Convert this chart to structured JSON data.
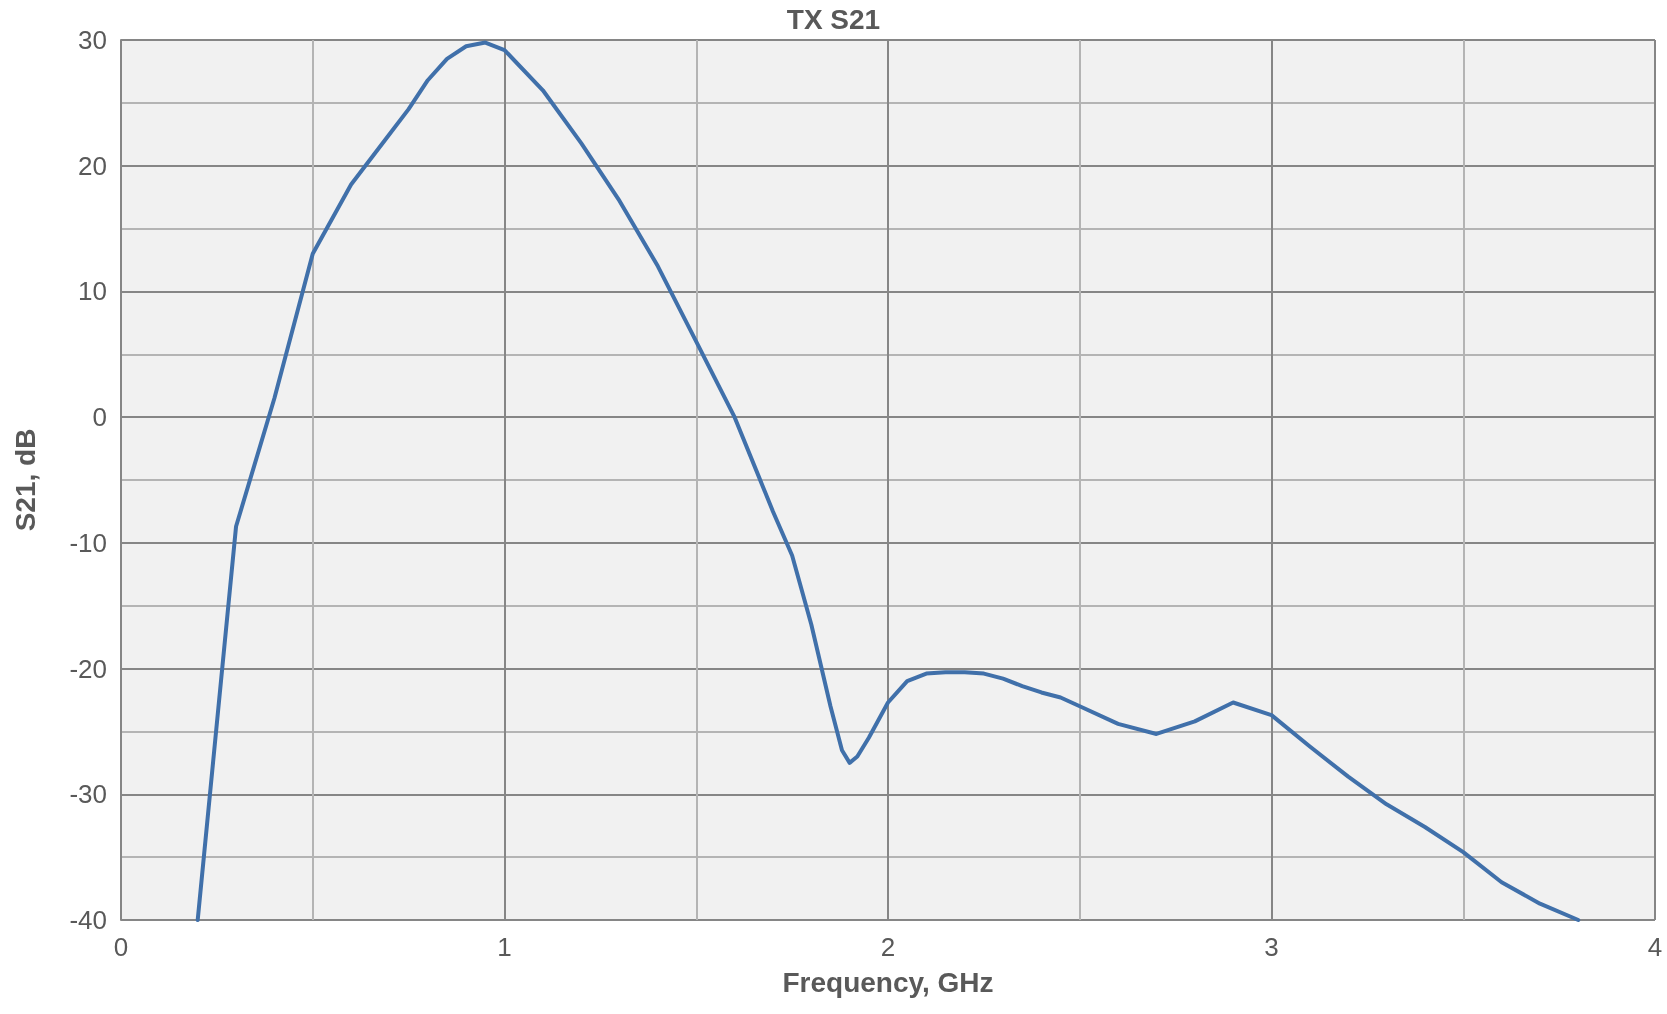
{
  "chart_data": {
    "type": "line",
    "title": "TX S21",
    "xlabel": "Frequency, GHz",
    "ylabel": "S21, dB",
    "x": [
      0.2,
      0.3,
      0.4,
      0.5,
      0.6,
      0.7,
      0.75,
      0.8,
      0.85,
      0.9,
      0.95,
      1.0,
      1.1,
      1.2,
      1.3,
      1.4,
      1.5,
      1.6,
      1.7,
      1.75,
      1.8,
      1.85,
      1.88,
      1.9,
      1.92,
      1.95,
      2.0,
      2.05,
      2.1,
      2.15,
      2.2,
      2.25,
      2.3,
      2.35,
      2.4,
      2.45,
      2.5,
      2.6,
      2.7,
      2.8,
      2.9,
      3.0,
      3.1,
      3.2,
      3.3,
      3.4,
      3.5,
      3.6,
      3.7,
      3.8
    ],
    "series": [
      {
        "color": "#4070aa",
        "values": [
          -40,
          -8.7,
          1.5,
          13,
          18.5,
          22.5,
          24.5,
          26.8,
          28.5,
          29.5,
          29.8,
          29.2,
          26,
          21.8,
          17.2,
          12,
          6,
          0,
          -7.5,
          -11,
          -16.5,
          -23,
          -26.5,
          -27.5,
          -27,
          -25.5,
          -22.7,
          -21,
          -20.4,
          -20.3,
          -20.3,
          -20.4,
          -20.8,
          -21.4,
          -21.9,
          -22.3,
          -23,
          -24.4,
          -25.2,
          -24.2,
          -22.7,
          -23.7,
          -26.2,
          -28.6,
          -30.8,
          -32.6,
          -34.6,
          -37,
          -38.7,
          -40
        ]
      }
    ],
    "xlim": [
      0,
      4
    ],
    "xticks": [
      0,
      {
        "value": 0.5,
        "label": null
      },
      1,
      {
        "value": 1.5,
        "label": null
      },
      2,
      {
        "value": 2.5,
        "label": null
      },
      3,
      {
        "value": 3.5,
        "label": null
      },
      4
    ],
    "ylim": [
      -40,
      30
    ],
    "yticks": [
      -40,
      {
        "value": -35,
        "label": null
      },
      -30,
      {
        "value": -25,
        "label": null
      },
      -20,
      {
        "value": -15,
        "label": null
      },
      -10,
      {
        "value": -5,
        "label": null
      },
      0,
      {
        "value": 5,
        "label": null
      },
      10,
      {
        "value": 15,
        "label": null
      },
      20,
      {
        "value": 25,
        "label": null
      },
      30
    ],
    "grid": true,
    "marker": "none",
    "line_style": "solid"
  }
}
